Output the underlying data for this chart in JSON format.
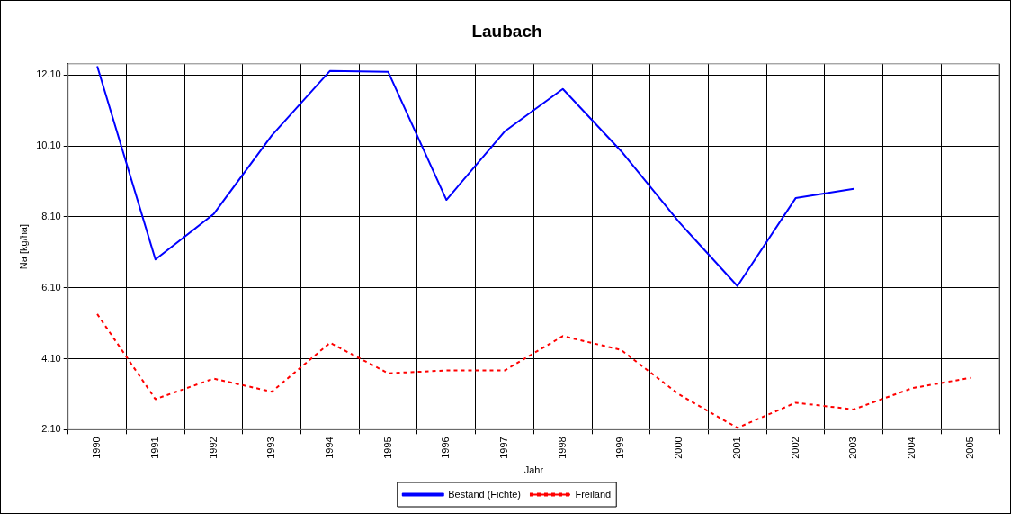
{
  "chart_data": {
    "type": "line",
    "title": "Laubach",
    "xlabel": "Jahr",
    "ylabel": "Na [kg/ha]",
    "categories": [
      "1990",
      "1991",
      "1992",
      "1993",
      "1994",
      "1995",
      "1996",
      "1997",
      "1998",
      "1999",
      "2000",
      "2001",
      "2002",
      "2003",
      "2004",
      "2005"
    ],
    "series": [
      {
        "name": "Bestand (Fichte)",
        "color": "#0000ff",
        "line_style": "solid",
        "values": [
          12.35,
          6.9,
          8.18,
          10.4,
          12.22,
          12.19,
          8.58,
          10.51,
          11.71,
          9.96,
          7.95,
          6.15,
          8.63,
          8.89,
          null,
          null
        ]
      },
      {
        "name": "Freiland",
        "color": "#ff0000",
        "line_style": "dashed",
        "values": [
          5.36,
          2.96,
          3.54,
          3.17,
          4.55,
          3.69,
          3.77,
          3.77,
          4.74,
          4.35,
          3.09,
          2.15,
          2.86,
          2.67,
          3.27,
          3.56
        ]
      }
    ],
    "ylim": [
      2.1,
      12.42
    ],
    "yticks": [
      {
        "value": 2.1,
        "label": "2.10"
      },
      {
        "value": 4.1,
        "label": "4.10"
      },
      {
        "value": 6.1,
        "label": "6.10"
      },
      {
        "value": 8.1,
        "label": "8.10"
      },
      {
        "value": 10.1,
        "label": "10.10"
      },
      {
        "value": 12.1,
        "label": "12.10"
      }
    ],
    "grid": true,
    "legend": "bottom"
  }
}
